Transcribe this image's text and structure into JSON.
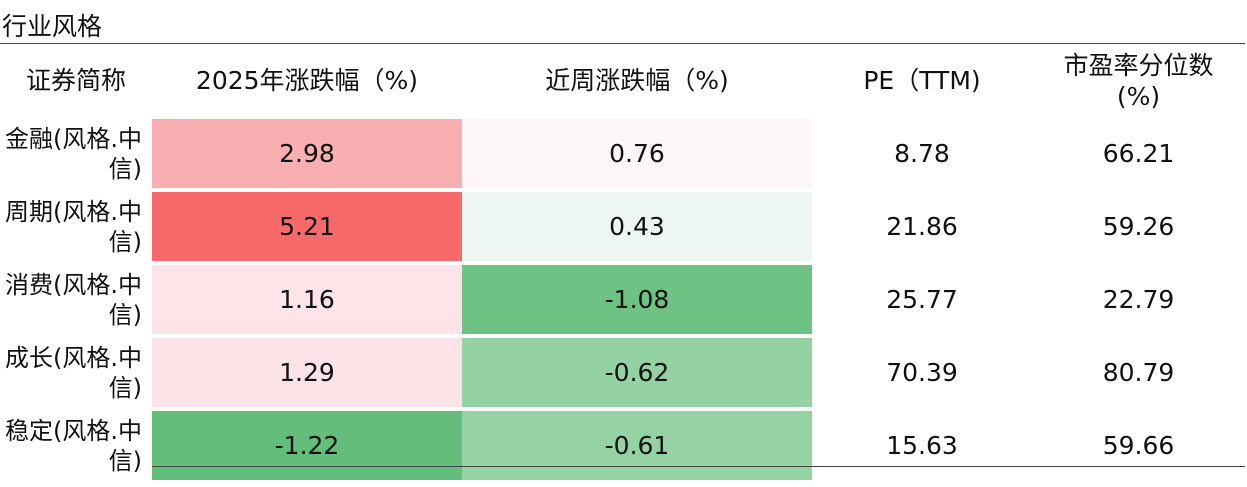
{
  "table": {
    "title": "行业风格",
    "headers": {
      "name": "证券简称",
      "ytd_change": "2025年涨跌幅（%)",
      "week_change": "近周涨跌幅（%)",
      "pe": "PE（TTM)",
      "pe_percentile": "市盈率分位数(%)"
    },
    "rows": [
      {
        "name": "金融(风格.中信)",
        "ytd_change": "2.98",
        "week_change": "0.76",
        "pe": "8.78",
        "pe_percentile": "66.21"
      },
      {
        "name": "周期(风格.中信)",
        "ytd_change": "5.21",
        "week_change": "0.43",
        "pe": "21.86",
        "pe_percentile": "59.26"
      },
      {
        "name": "消费(风格.中信)",
        "ytd_change": "1.16",
        "week_change": "-1.08",
        "pe": "25.77",
        "pe_percentile": "22.79"
      },
      {
        "name": "成长(风格.中信)",
        "ytd_change": "1.29",
        "week_change": "-0.62",
        "pe": "70.39",
        "pe_percentile": "80.79"
      },
      {
        "name": "稳定(风格.中信)",
        "ytd_change": "-1.22",
        "week_change": "-0.61",
        "pe": "15.63",
        "pe_percentile": "59.66"
      }
    ],
    "cell_colors": {
      "ytd_change": [
        "#f9aeb1",
        "#f8696b",
        "#fce4e8",
        "#fce3e7",
        "#63be7b"
      ],
      "week_change": [
        "#fcf6fa",
        "#eef6f1",
        "#6ec283",
        "#94d2a3",
        "#95d3a4"
      ]
    }
  }
}
